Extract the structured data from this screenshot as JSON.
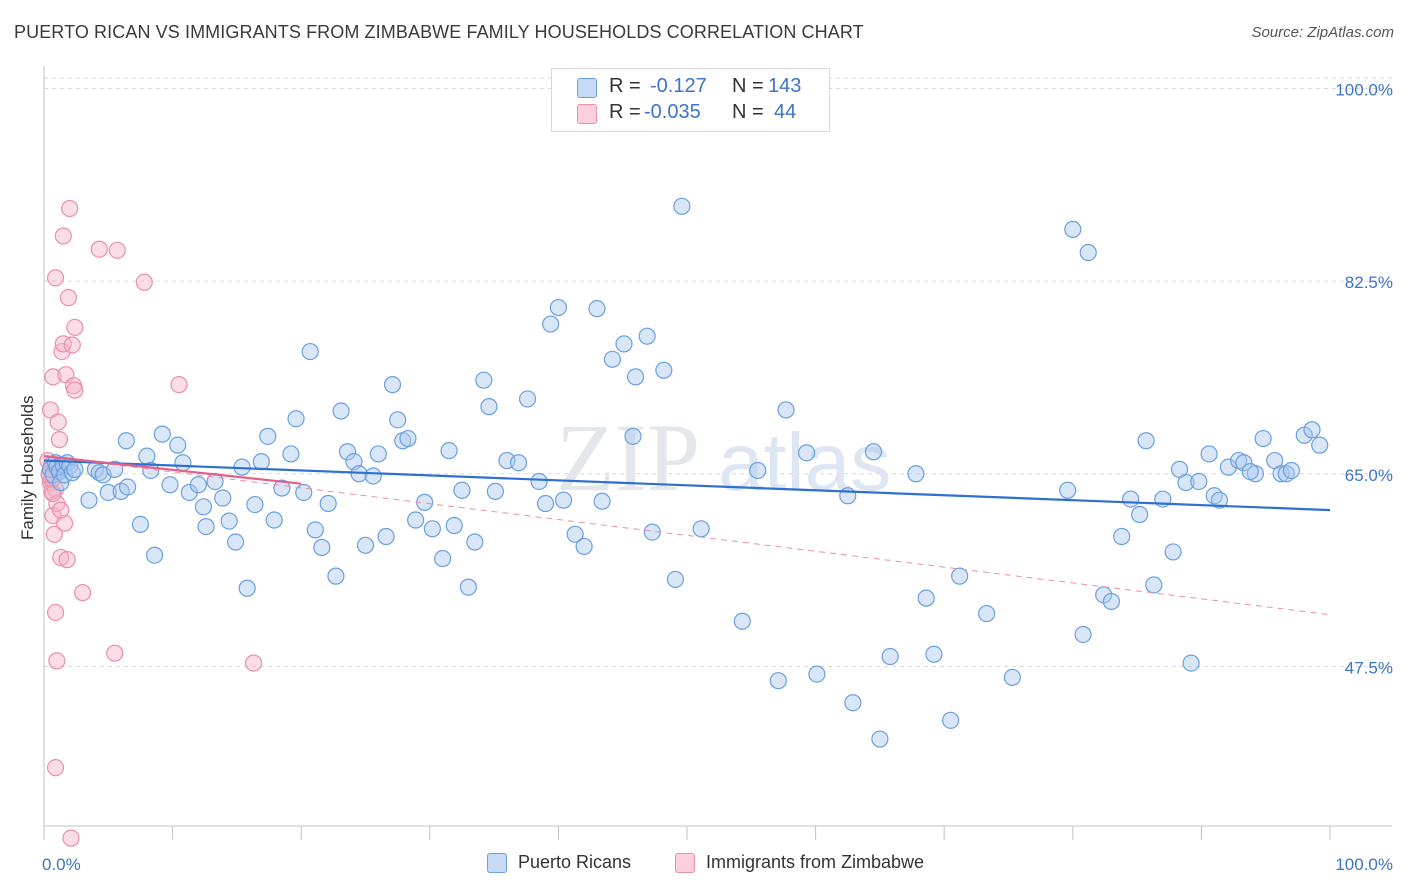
{
  "header": {
    "title": "PUERTO RICAN VS IMMIGRANTS FROM ZIMBABWE FAMILY HOUSEHOLDS CORRELATION CHART",
    "source": "Source: ZipAtlas.com"
  },
  "watermark": {
    "zip": "ZIP",
    "atlas": "atlas"
  },
  "legend": {
    "rows": [
      {
        "r_label": "R =",
        "r_value": "-0.127",
        "n_label": "N =",
        "n_value": "143",
        "color": "#a9c8ef"
      },
      {
        "r_label": "R =",
        "r_value": "-0.035",
        "n_label": "N =",
        "n_value": "44",
        "color": "#f5b3c7"
      }
    ]
  },
  "bottom_legend": {
    "items": [
      {
        "label": "Puerto Ricans",
        "color": "#a9c8ef"
      },
      {
        "label": "Immigrants from Zimbabwe",
        "color": "#f5b3c7"
      }
    ]
  },
  "chart_data": {
    "type": "scatter",
    "title": "PUERTO RICAN VS IMMIGRANTS FROM ZIMBABWE FAMILY HOUSEHOLDS CORRELATION CHART",
    "ylabel": "Family Households",
    "xlabel": "",
    "xlim": [
      0,
      100
    ],
    "ylim": [
      33.0,
      101.5
    ],
    "x_tick_labels": [
      "0.0%",
      "100.0%"
    ],
    "y_ticks": [
      47.5,
      65.0,
      82.5,
      100.0
    ],
    "y_tick_labels": [
      "47.5%",
      "65.0%",
      "82.5%",
      "100.0%"
    ],
    "grid": true,
    "legend_position": "top-center",
    "series": [
      {
        "name": "Puerto Ricans",
        "color": "#6a9fe0",
        "fill": "#a9c8ef",
        "trend": {
          "x": [
            0,
            100
          ],
          "y": [
            66.2,
            61.7
          ]
        },
        "points": [
          [
            0.5,
            65.4
          ],
          [
            0.7,
            64.9
          ],
          [
            0.9,
            66.0
          ],
          [
            1.0,
            65.6
          ],
          [
            1.2,
            65.2
          ],
          [
            1.3,
            64.2
          ],
          [
            1.5,
            65.8
          ],
          [
            1.6,
            64.9
          ],
          [
            1.8,
            66.0
          ],
          [
            2.0,
            65.7
          ],
          [
            2.2,
            65.1
          ],
          [
            2.4,
            65.4
          ],
          [
            3.5,
            62.6
          ],
          [
            4.0,
            65.4
          ],
          [
            4.3,
            65.1
          ],
          [
            4.6,
            64.9
          ],
          [
            5.0,
            63.3
          ],
          [
            5.5,
            65.4
          ],
          [
            6.0,
            63.4
          ],
          [
            6.5,
            63.8
          ],
          [
            6.4,
            68.0
          ],
          [
            7.5,
            60.4
          ],
          [
            8.0,
            66.6
          ],
          [
            8.3,
            65.3
          ],
          [
            8.6,
            57.6
          ],
          [
            9.2,
            68.6
          ],
          [
            9.8,
            64.0
          ],
          [
            10.4,
            67.6
          ],
          [
            10.8,
            66.0
          ],
          [
            11.3,
            63.3
          ],
          [
            12.0,
            64.0
          ],
          [
            12.4,
            62.0
          ],
          [
            12.6,
            60.2
          ],
          [
            13.3,
            64.3
          ],
          [
            13.9,
            62.8
          ],
          [
            14.4,
            60.7
          ],
          [
            14.9,
            58.8
          ],
          [
            15.4,
            65.6
          ],
          [
            15.8,
            54.6
          ],
          [
            16.4,
            62.2
          ],
          [
            16.9,
            66.1
          ],
          [
            17.4,
            68.4
          ],
          [
            17.9,
            60.8
          ],
          [
            18.5,
            63.7
          ],
          [
            19.2,
            66.8
          ],
          [
            19.6,
            70.0
          ],
          [
            20.2,
            63.3
          ],
          [
            20.7,
            76.1
          ],
          [
            21.1,
            59.9
          ],
          [
            21.6,
            58.3
          ],
          [
            22.1,
            62.3
          ],
          [
            22.7,
            55.7
          ],
          [
            23.1,
            70.7
          ],
          [
            23.6,
            67.0
          ],
          [
            24.1,
            66.1
          ],
          [
            24.5,
            65.0
          ],
          [
            25.0,
            58.5
          ],
          [
            25.6,
            64.8
          ],
          [
            26.0,
            66.8
          ],
          [
            26.6,
            59.3
          ],
          [
            27.1,
            73.1
          ],
          [
            27.5,
            69.9
          ],
          [
            27.9,
            68.0
          ],
          [
            28.3,
            68.2
          ],
          [
            28.9,
            60.8
          ],
          [
            29.6,
            62.4
          ],
          [
            30.2,
            60.0
          ],
          [
            31.0,
            57.3
          ],
          [
            31.5,
            67.1
          ],
          [
            31.9,
            60.3
          ],
          [
            32.5,
            63.5
          ],
          [
            33.0,
            54.7
          ],
          [
            33.5,
            58.8
          ],
          [
            34.2,
            73.5
          ],
          [
            34.6,
            71.1
          ],
          [
            35.1,
            63.4
          ],
          [
            36.0,
            66.2
          ],
          [
            36.9,
            66.0
          ],
          [
            37.6,
            71.8
          ],
          [
            38.5,
            64.3
          ],
          [
            39.0,
            62.3
          ],
          [
            39.4,
            78.6
          ],
          [
            40.0,
            80.1
          ],
          [
            40.4,
            62.6
          ],
          [
            41.3,
            59.5
          ],
          [
            42.0,
            58.4
          ],
          [
            43.0,
            80.0
          ],
          [
            43.4,
            62.5
          ],
          [
            44.2,
            75.4
          ],
          [
            45.1,
            76.8
          ],
          [
            45.8,
            68.4
          ],
          [
            46.0,
            73.8
          ],
          [
            46.9,
            77.5
          ],
          [
            47.3,
            59.7
          ],
          [
            48.2,
            74.4
          ],
          [
            49.1,
            55.4
          ],
          [
            49.6,
            89.3
          ],
          [
            51.1,
            60.0
          ],
          [
            54.3,
            51.6
          ],
          [
            55.5,
            65.3
          ],
          [
            57.1,
            46.2
          ],
          [
            57.7,
            70.8
          ],
          [
            59.3,
            66.9
          ],
          [
            60.1,
            46.8
          ],
          [
            62.5,
            63.0
          ],
          [
            62.9,
            44.2
          ],
          [
            64.5,
            67.0
          ],
          [
            65.0,
            40.9
          ],
          [
            65.8,
            48.4
          ],
          [
            67.8,
            65.0
          ],
          [
            68.6,
            53.7
          ],
          [
            69.2,
            48.6
          ],
          [
            70.5,
            42.6
          ],
          [
            71.2,
            55.7
          ],
          [
            73.3,
            52.3
          ],
          [
            75.3,
            46.5
          ],
          [
            79.6,
            63.5
          ],
          [
            80.0,
            87.2
          ],
          [
            80.8,
            50.4
          ],
          [
            81.2,
            85.1
          ],
          [
            82.4,
            54.0
          ],
          [
            83.0,
            53.4
          ],
          [
            83.8,
            59.3
          ],
          [
            84.5,
            62.7
          ],
          [
            85.2,
            61.3
          ],
          [
            85.7,
            68.0
          ],
          [
            86.3,
            54.9
          ],
          [
            87.0,
            62.7
          ],
          [
            87.8,
            57.9
          ],
          [
            88.3,
            65.4
          ],
          [
            88.8,
            64.2
          ],
          [
            89.2,
            47.8
          ],
          [
            89.8,
            64.3
          ],
          [
            90.6,
            66.8
          ],
          [
            91.0,
            63.0
          ],
          [
            91.4,
            62.6
          ],
          [
            92.1,
            65.6
          ],
          [
            92.9,
            66.2
          ],
          [
            93.3,
            66.0
          ],
          [
            94.2,
            65.0
          ],
          [
            94.8,
            68.2
          ],
          [
            95.7,
            66.2
          ],
          [
            96.2,
            65.0
          ],
          [
            96.6,
            65.0
          ],
          [
            97.0,
            65.3
          ],
          [
            98.0,
            68.5
          ],
          [
            98.6,
            69.0
          ],
          [
            99.2,
            67.6
          ],
          [
            93.8,
            65.2
          ]
        ]
      },
      {
        "name": "Immigrants from Zimbabwe",
        "color": "#ec8fa9",
        "fill": "#f5b3c7",
        "trend": {
          "x": [
            0,
            20
          ],
          "y": [
            66.6,
            64.1
          ]
        },
        "trend_extended": {
          "x": [
            0,
            100
          ],
          "y": [
            66.6,
            52.2
          ]
        },
        "points": [
          [
            0.3,
            66.2
          ],
          [
            0.4,
            65.0
          ],
          [
            0.5,
            64.2
          ],
          [
            0.6,
            63.4
          ],
          [
            0.7,
            61.2
          ],
          [
            0.8,
            59.5
          ],
          [
            0.6,
            65.8
          ],
          [
            0.8,
            64.7
          ],
          [
            0.9,
            63.6
          ],
          [
            1.0,
            62.3
          ],
          [
            0.5,
            70.8
          ],
          [
            0.7,
            73.8
          ],
          [
            0.9,
            82.8
          ],
          [
            1.1,
            69.7
          ],
          [
            1.2,
            68.1
          ],
          [
            1.3,
            57.4
          ],
          [
            1.4,
            76.1
          ],
          [
            1.5,
            76.8
          ],
          [
            1.6,
            60.5
          ],
          [
            1.7,
            74.0
          ],
          [
            1.8,
            57.2
          ],
          [
            1.9,
            81.0
          ],
          [
            2.0,
            89.1
          ],
          [
            2.2,
            76.7
          ],
          [
            2.3,
            73.0
          ],
          [
            2.4,
            72.6
          ],
          [
            0.9,
            52.4
          ],
          [
            1.0,
            48.0
          ],
          [
            0.9,
            38.3
          ],
          [
            2.1,
            31.9
          ],
          [
            3.0,
            54.2
          ],
          [
            2.4,
            78.3
          ],
          [
            1.5,
            86.6
          ],
          [
            4.3,
            85.4
          ],
          [
            5.5,
            48.7
          ],
          [
            5.7,
            85.3
          ],
          [
            7.8,
            82.4
          ],
          [
            10.5,
            73.1
          ],
          [
            16.3,
            47.8
          ],
          [
            0.6,
            64.5
          ],
          [
            1.1,
            65.3
          ],
          [
            0.7,
            63.2
          ],
          [
            0.4,
            64.9
          ],
          [
            1.3,
            61.7
          ]
        ]
      }
    ]
  }
}
